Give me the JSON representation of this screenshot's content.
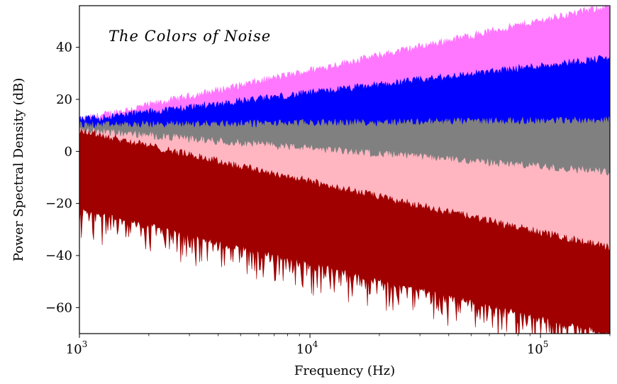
{
  "chart_data": {
    "type": "area",
    "title": "The Colors of Noise",
    "xlabel": "Frequency (Hz)",
    "ylabel": "Power Spectral Density (dB)",
    "xscale": "log",
    "xlim": [
      1000,
      200000
    ],
    "ylim": [
      -70,
      56
    ],
    "x_ticks": [
      {
        "base": "10",
        "exp": "3",
        "value": 1000
      },
      {
        "base": "10",
        "exp": "4",
        "value": 10000
      },
      {
        "base": "10",
        "exp": "5",
        "value": 100000
      }
    ],
    "y_ticks": [
      {
        "label": "40",
        "value": 40
      },
      {
        "label": "20",
        "value": 20
      },
      {
        "label": "0",
        "value": 0
      },
      {
        "label": "−20",
        "value": -20
      },
      {
        "label": "−40",
        "value": -40
      },
      {
        "label": "−60",
        "value": -60
      }
    ],
    "grid": false,
    "legend": "none",
    "series": [
      {
        "color": "#ff77ff",
        "slope_db_per_decade": 20,
        "upper_at_1e3": 12,
        "lower_at_1e3": 8,
        "upper_at_2e5": 56,
        "lower_at_2e5": 10
      },
      {
        "color": "#0000ff",
        "slope_db_per_decade": 10,
        "upper_at_1e3": 12,
        "lower_at_1e3": 8,
        "upper_at_2e5": 36,
        "lower_at_2e5": 10
      },
      {
        "color": "#808080",
        "slope_db_per_decade": 0,
        "upper_at_1e3": 10,
        "lower_at_1e3": 6,
        "upper_at_2e5": 12,
        "lower_at_2e5": -12
      },
      {
        "color": "#ffb6c1",
        "slope_db_per_decade": -10,
        "upper_at_1e3": 8,
        "lower_at_1e3": 2,
        "upper_at_2e5": -8,
        "lower_at_2e5": -36
      },
      {
        "color": "#a00000",
        "slope_db_per_decade": -20,
        "upper_at_1e3": 8,
        "lower_at_1e3": -22,
        "upper_at_2e5": -37,
        "lower_at_2e5": -70
      }
    ]
  }
}
